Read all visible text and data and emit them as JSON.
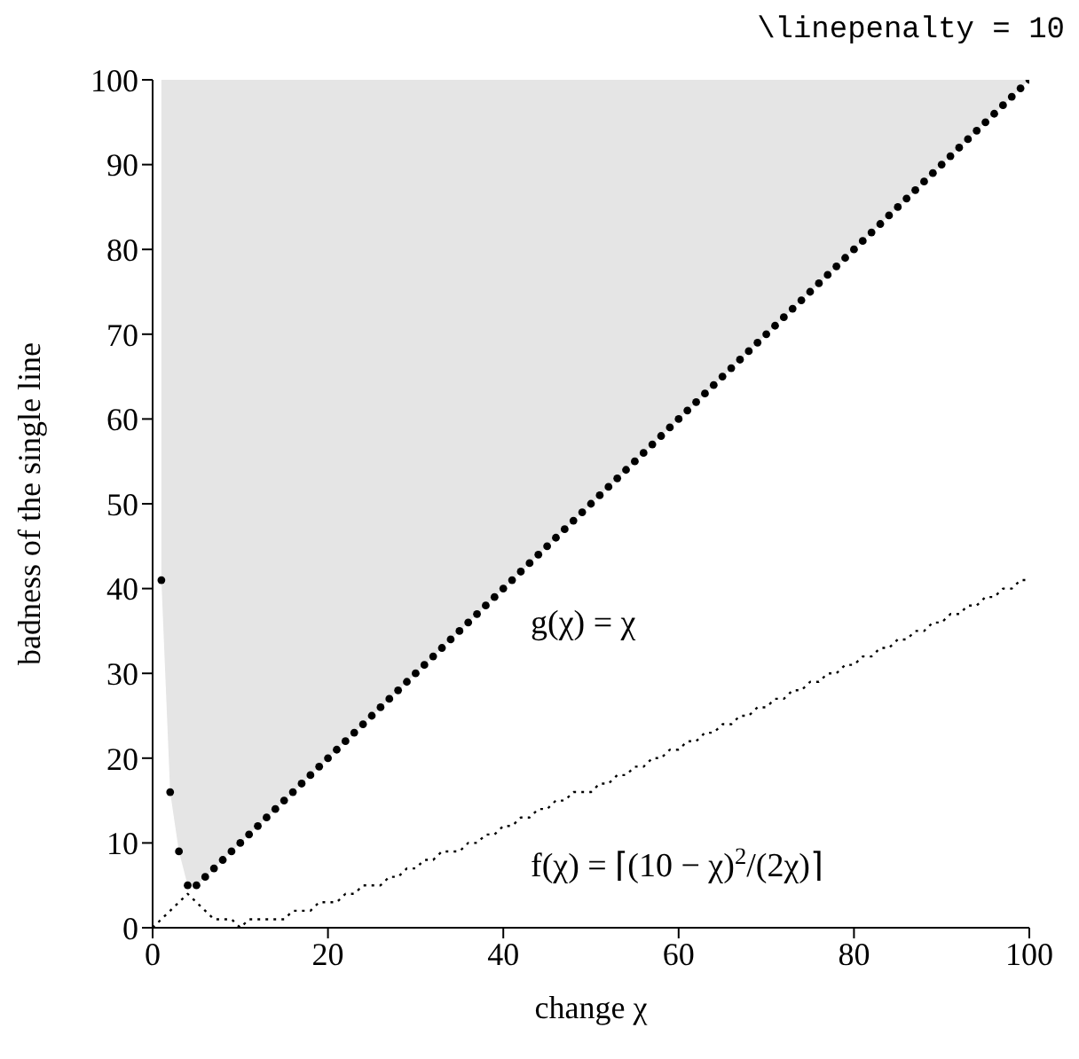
{
  "chart_data": {
    "type": "scatter",
    "title": "\\linepenalty = 10",
    "xlabel": "change χ",
    "ylabel": "badness of the single line",
    "xlim": [
      0,
      100
    ],
    "ylim": [
      0,
      100
    ],
    "xticks": [
      0,
      20,
      40,
      60,
      80,
      100
    ],
    "yticks": [
      0,
      10,
      20,
      30,
      40,
      50,
      60,
      70,
      80,
      90,
      100
    ],
    "grid": false,
    "legend": false,
    "annotations": [
      "g(χ) = χ",
      "f(χ) = ⌈(10 − χ)$^{2}$/(2χ)⌉"
    ],
    "series": [
      {
        "color": "#000000",
        "marker": "circle",
        "x": [
          1,
          2,
          3,
          4,
          5,
          6,
          7,
          8,
          9,
          10,
          11,
          12,
          13,
          14,
          15,
          16,
          17,
          18,
          19,
          20,
          21,
          22,
          23,
          24,
          25,
          26,
          27,
          28,
          29,
          30,
          31,
          32,
          33,
          34,
          35,
          36,
          37,
          38,
          39,
          40,
          41,
          42,
          43,
          44,
          45,
          46,
          47,
          48,
          49,
          50,
          51,
          52,
          53,
          54,
          55,
          56,
          57,
          58,
          59,
          60,
          61,
          62,
          63,
          64,
          65,
          66,
          67,
          68,
          69,
          70,
          71,
          72,
          73,
          74,
          75,
          76,
          77,
          78,
          79,
          80,
          81,
          82,
          83,
          84,
          85,
          86,
          87,
          88,
          89,
          90,
          91,
          92,
          93,
          94,
          95,
          96,
          97,
          98,
          99,
          100
        ],
        "values": [
          41,
          16,
          9,
          5,
          5,
          6,
          7,
          8,
          9,
          10,
          11,
          12,
          13,
          14,
          15,
          16,
          17,
          18,
          19,
          20,
          21,
          22,
          23,
          24,
          25,
          26,
          27,
          28,
          29,
          30,
          31,
          32,
          33,
          34,
          35,
          36,
          37,
          38,
          39,
          40,
          41,
          42,
          43,
          44,
          45,
          46,
          47,
          48,
          49,
          50,
          51,
          52,
          53,
          54,
          55,
          56,
          57,
          58,
          59,
          60,
          61,
          62,
          63,
          64,
          65,
          66,
          67,
          68,
          69,
          70,
          71,
          72,
          73,
          74,
          75,
          76,
          77,
          78,
          79,
          80,
          81,
          82,
          83,
          84,
          85,
          86,
          87,
          88,
          89,
          90,
          91,
          92,
          93,
          94,
          95,
          96,
          97,
          98,
          99,
          100
        ],
        "lower": [
          41,
          16,
          9,
          5,
          5,
          6,
          7,
          8,
          9,
          10,
          11,
          12,
          13,
          14,
          15,
          16,
          17,
          18,
          19,
          20,
          21,
          22,
          23,
          24,
          25,
          26,
          27,
          28,
          29,
          30,
          31,
          32,
          33,
          34,
          35,
          36,
          37,
          38,
          39,
          40,
          41,
          42,
          43,
          44,
          45,
          46,
          47,
          48,
          49,
          50,
          51,
          52,
          53,
          54,
          55,
          56,
          57,
          58,
          59,
          60,
          61,
          62,
          63,
          64,
          65,
          66,
          67,
          68,
          69,
          70,
          71,
          72,
          73,
          74,
          75,
          76,
          77,
          78,
          79,
          80,
          81,
          82,
          83,
          84,
          85,
          86,
          87,
          88,
          89,
          90,
          91,
          92,
          93,
          94,
          95,
          96,
          97,
          98,
          99,
          100
        ],
        "upper": [
          100,
          100,
          100,
          100,
          100,
          100,
          100,
          100,
          100,
          100,
          100,
          100,
          100,
          100,
          100,
          100,
          100,
          100,
          100,
          100,
          100,
          100,
          100,
          100,
          100,
          100,
          100,
          100,
          100,
          100,
          100,
          100,
          100,
          100,
          100,
          100,
          100,
          100,
          100,
          100,
          100,
          100,
          100,
          100,
          100,
          100,
          100,
          100,
          100,
          100,
          100,
          100,
          100,
          100,
          100,
          100,
          100,
          100,
          100,
          100,
          100,
          100,
          100,
          100,
          100,
          100,
          100,
          100,
          100,
          100,
          100,
          100,
          100,
          100,
          100,
          100,
          100,
          100,
          100,
          100,
          100,
          100,
          100,
          100,
          100,
          100,
          100,
          100,
          100,
          100,
          100,
          100,
          100,
          100,
          100,
          100,
          100,
          100,
          100,
          100
        ]
      },
      {
        "type": "line",
        "color": "#000000",
        "marker": "none",
        "line_style": "dotted",
        "x": [
          0,
          1,
          2,
          3,
          4,
          5,
          6,
          7,
          8,
          9,
          10,
          11,
          12,
          13,
          14,
          15,
          16,
          17,
          18,
          19,
          20,
          21,
          22,
          23,
          24,
          25,
          26,
          27,
          28,
          29,
          30,
          31,
          32,
          33,
          34,
          35,
          36,
          37,
          38,
          39,
          40,
          41,
          42,
          43,
          44,
          45,
          46,
          47,
          48,
          49,
          50,
          51,
          52,
          53,
          54,
          55,
          56,
          57,
          58,
          59,
          60,
          61,
          62,
          63,
          64,
          65,
          66,
          67,
          68,
          69,
          70,
          71,
          72,
          73,
          74,
          75,
          76,
          77,
          78,
          79,
          80,
          81,
          82,
          83,
          84,
          85,
          86,
          87,
          88,
          89,
          90,
          91,
          92,
          93,
          94,
          95,
          96,
          97,
          98,
          99,
          100
        ],
        "values": [
          0,
          1,
          2,
          3,
          4,
          3,
          2,
          1,
          1,
          1,
          0,
          1,
          1,
          1,
          1,
          1,
          2,
          2,
          2,
          3,
          3,
          3,
          4,
          4,
          5,
          5,
          5,
          6,
          6,
          7,
          7,
          8,
          8,
          9,
          9,
          9,
          10,
          10,
          11,
          11,
          12,
          12,
          13,
          13,
          14,
          14,
          15,
          15,
          16,
          16,
          16,
          17,
          17,
          18,
          18,
          19,
          19,
          20,
          20,
          21,
          21,
          22,
          22,
          23,
          23,
          24,
          24,
          25,
          25,
          26,
          26,
          27,
          27,
          28,
          28,
          29,
          29,
          30,
          30,
          31,
          31,
          32,
          32,
          33,
          33,
          34,
          34,
          35,
          35,
          36,
          36,
          37,
          37,
          38,
          38,
          39,
          39,
          40,
          40,
          41,
          41
        ]
      }
    ]
  }
}
